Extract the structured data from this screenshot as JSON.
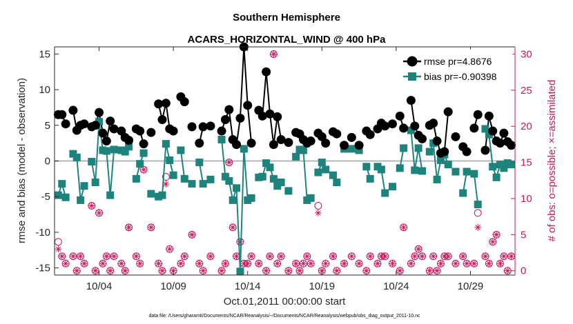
{
  "chart_data": {
    "type": "line",
    "title": "Southern Hemisphere",
    "subtitle": "ACARS_HORIZONTAL_WIND @ 400 hPa",
    "xlabel": "Oct.01,2011 00:00:00 start",
    "ylabel": "rmse and bias (model - observation)",
    "ylabel_right": "# of obs: o=possible; ×=assimilated",
    "xlim": [
      1,
      32
    ],
    "ylim": [
      -16,
      16
    ],
    "ylim_right": [
      -0.6,
      31
    ],
    "x_ticks": [
      4,
      9,
      14,
      19,
      24,
      29
    ],
    "x_tick_labels": [
      "10/04",
      "10/09",
      "10/14",
      "10/19",
      "10/24",
      "10/29"
    ],
    "y_ticks": [
      -15,
      -10,
      -5,
      0,
      5,
      10,
      15
    ],
    "y_tick_labels": [
      "-15",
      "-10",
      "-5",
      "0",
      "5",
      "10",
      "15"
    ],
    "y_ticks_right": [
      0,
      5,
      10,
      15,
      20,
      25,
      30
    ],
    "y_tick_labels_right": [
      "0",
      "5",
      "10",
      "15",
      "20",
      "25",
      "30"
    ],
    "legend_position": "top-right",
    "footer": "data file: /Users/gharamti/Documents/NCAR/Reanalysis/~/Documents/NCAR/Reanalysis/webpub/obs_diag_output_2011-10.nc",
    "series": [
      {
        "name": "rmse pr=4.8676",
        "color": "#000000",
        "marker": "circle",
        "x": [
          1.25,
          1.5,
          1.75,
          2.25,
          2.5,
          2.75,
          3.0,
          3.5,
          3.75,
          4.0,
          4.25,
          4.5,
          4.75,
          5.0,
          5.5,
          5.75,
          6.0,
          6.5,
          6.75,
          7.0,
          7.5,
          8.0,
          8.25,
          8.5,
          8.75,
          9.0,
          9.5,
          9.75,
          10.25,
          10.75,
          11.0,
          11.5,
          12.25,
          12.5,
          12.75,
          13.0,
          13.25,
          13.5,
          13.75,
          14.0,
          14.25,
          14.75,
          15.0,
          15.25,
          15.5,
          15.75,
          16.0,
          16.25,
          16.75,
          17.25,
          17.5,
          17.75,
          18.0,
          18.25,
          18.75,
          19.0,
          19.25,
          19.75,
          20.0,
          20.5,
          21.0,
          21.5,
          22.0,
          22.25,
          22.75,
          23.0,
          23.25,
          23.75,
          24.25,
          24.5,
          25.0,
          25.25,
          25.5,
          25.75,
          26.25,
          26.5,
          26.75,
          27.0,
          27.25,
          27.5,
          28.0,
          28.5,
          28.75,
          29.25,
          29.5,
          30.0,
          30.25,
          30.5,
          30.75,
          31.0,
          31.25,
          31.5,
          31.75
        ],
        "y": [
          6.5,
          6.5,
          5.2,
          7.1,
          4.3,
          5.0,
          5.2,
          4.8,
          5.0,
          6.8,
          3.9,
          2.8,
          5.6,
          4.5,
          4.2,
          3.3,
          2.9,
          4.5,
          4.2,
          2.4,
          4.0,
          8.0,
          5.8,
          8.1,
          4.5,
          4.2,
          9.0,
          8.3,
          4.8,
          2.5,
          4.8,
          4.9,
          4.2,
          5.8,
          7.2,
          3.0,
          2.3,
          6.0,
          16.0,
          7.8,
          2.5,
          7.1,
          6.3,
          12.5,
          6.6,
          2.3,
          6.2,
          3.0,
          2.6,
          4.0,
          3.8,
          3.0,
          2.5,
          2.8,
          3.9,
          3.4,
          2.5,
          4.1,
          3.8,
          2.2,
          3.3,
          2.2,
          4.2,
          3.7,
          4.5,
          5.3,
          4.9,
          5.2,
          6.3,
          4.6,
          8.5,
          4.9,
          3.6,
          3.1,
          5.0,
          5.3,
          2.8,
          1.1,
          1.3,
          6.9,
          3.4,
          2.0,
          1.3,
          4.6,
          6.5,
          1.5,
          6.3,
          4.2,
          2.8,
          2.5,
          3.9,
          2.7,
          2.2
        ]
      },
      {
        "name": "bias pr=-0.90398",
        "color": "#1d837d",
        "marker": "square",
        "x": [
          1.25,
          1.5,
          1.75,
          2.25,
          2.5,
          2.75,
          3.0,
          3.5,
          3.75,
          4.0,
          4.25,
          4.5,
          4.75,
          5.0,
          5.5,
          5.75,
          6.0,
          6.5,
          6.75,
          7.0,
          7.5,
          8.0,
          8.25,
          8.5,
          8.75,
          9.0,
          9.5,
          9.75,
          10.25,
          10.75,
          11.0,
          11.5,
          12.25,
          12.5,
          12.75,
          13.0,
          13.25,
          13.5,
          13.75,
          14.0,
          14.25,
          14.75,
          15.0,
          15.25,
          15.5,
          15.75,
          16.0,
          16.25,
          16.75,
          17.25,
          17.5,
          17.75,
          18.0,
          18.25,
          18.75,
          19.0,
          19.25,
          19.75,
          20.0,
          20.5,
          21.0,
          21.5,
          22.0,
          22.25,
          22.75,
          23.0,
          23.25,
          23.75,
          24.25,
          24.5,
          25.0,
          25.25,
          25.5,
          25.75,
          26.25,
          26.5,
          26.75,
          27.0,
          27.25,
          27.5,
          28.0,
          28.5,
          28.75,
          29.25,
          29.5,
          30.0,
          30.25,
          30.5,
          30.75,
          31.0,
          31.25,
          31.5,
          31.75
        ],
        "y": [
          -4.8,
          -3.2,
          -5.1,
          1.0,
          0.5,
          -5.5,
          -3.5,
          -0.1,
          -3.0,
          5.5,
          1.5,
          1.4,
          -4.8,
          1.6,
          1.5,
          1.3,
          2.0,
          -2.5,
          -0.4,
          1.1,
          -4.6,
          -5.0,
          -4.8,
          2.4,
          0.1,
          -2.0,
          1.5,
          -2.5,
          -3.2,
          -0.2,
          -3.2,
          -2.6,
          3.0,
          -2.2,
          -2.8,
          -5.5,
          -3.8,
          -15.5,
          1.7,
          -5.5,
          -5.2,
          -2.3,
          -2.2,
          -0.3,
          -0.9,
          -2.5,
          -3.5,
          -3.0,
          -4.2,
          0.6,
          1.6,
          1.5,
          -5.5,
          -5.2,
          -1.6,
          -0.2,
          -1.2,
          -2.0,
          -3.0,
          1.7,
          1.7,
          1.5,
          -0.8,
          -2.5,
          -0.8,
          -1.2,
          -4.5,
          -3.6,
          -1.0,
          1.8,
          4.3,
          -1.3,
          1.8,
          -1.4,
          1.3,
          2.5,
          -2.6,
          0.1,
          0.9,
          -0.5,
          -1.5,
          -4.5,
          -1.5,
          -1.8,
          -6.1,
          4.5,
          3.7,
          -0.8,
          -2.3,
          -0.5,
          -1.0,
          -0.3,
          -0.5
        ]
      },
      {
        "name": "possible",
        "color": "#c8175b",
        "marker": "circle-open",
        "axis": "right",
        "x": [
          1.25,
          1.5,
          1.75,
          2.25,
          2.5,
          2.75,
          3.0,
          3.5,
          3.75,
          4.0,
          4.25,
          4.5,
          4.75,
          5.0,
          5.5,
          5.75,
          6.0,
          6.5,
          6.75,
          7.0,
          7.5,
          8.0,
          8.25,
          8.5,
          8.75,
          9.0,
          9.5,
          9.75,
          10.25,
          10.75,
          11.0,
          11.5,
          12.25,
          12.5,
          12.75,
          13.0,
          13.25,
          13.5,
          13.75,
          14.0,
          14.25,
          14.75,
          15.0,
          15.25,
          15.5,
          15.75,
          16.0,
          16.25,
          16.75,
          17.25,
          17.5,
          17.75,
          18.0,
          18.25,
          18.75,
          19.0,
          19.25,
          19.75,
          20.0,
          20.5,
          21.0,
          21.5,
          22.0,
          22.25,
          22.75,
          23.0,
          23.25,
          23.75,
          24.25,
          24.5,
          25.0,
          25.25,
          25.5,
          25.75,
          26.25,
          26.5,
          26.75,
          27.0,
          27.25,
          27.5,
          28.0,
          28.5,
          28.75,
          29.25,
          29.5,
          30.0,
          30.25,
          30.5,
          30.75,
          31.0,
          31.25,
          31.5,
          31.75
        ],
        "y": [
          4,
          2,
          1,
          2,
          0,
          2,
          1,
          9,
          0,
          8,
          1,
          2,
          0,
          2,
          1,
          0,
          6,
          2,
          1,
          14,
          6,
          1,
          0,
          13,
          3,
          0,
          1,
          2,
          5,
          1,
          0,
          2,
          0,
          1,
          15,
          6,
          2,
          4,
          1,
          1,
          2,
          1,
          13,
          0,
          2,
          30,
          1,
          2,
          0,
          1,
          0,
          1,
          2,
          1,
          9,
          0,
          1,
          2,
          0,
          1,
          2,
          1,
          0,
          2,
          1,
          2,
          2,
          1,
          0,
          6,
          1,
          2,
          3,
          2,
          0,
          2,
          0,
          1,
          2,
          2,
          1,
          2,
          1,
          1,
          8,
          2,
          1,
          4,
          5,
          1,
          2,
          0,
          2
        ]
      },
      {
        "name": "assimilated",
        "color": "#c8175b",
        "marker": "cross",
        "axis": "right",
        "x": [
          1.25,
          1.5,
          1.75,
          2.25,
          2.5,
          2.75,
          3.0,
          3.5,
          3.75,
          4.0,
          4.25,
          4.5,
          4.75,
          5.0,
          5.5,
          5.75,
          6.0,
          6.5,
          6.75,
          7.0,
          7.5,
          8.0,
          8.25,
          8.5,
          8.75,
          9.0,
          9.5,
          9.75,
          10.25,
          10.75,
          11.0,
          11.5,
          12.25,
          12.5,
          12.75,
          13.0,
          13.25,
          13.5,
          13.75,
          14.0,
          14.25,
          14.75,
          15.0,
          15.25,
          15.5,
          15.75,
          16.0,
          16.25,
          16.75,
          17.25,
          17.5,
          17.75,
          18.0,
          18.25,
          18.75,
          19.0,
          19.25,
          19.75,
          20.0,
          20.5,
          21.0,
          21.5,
          22.0,
          22.25,
          22.75,
          23.0,
          23.25,
          23.75,
          24.25,
          24.5,
          25.0,
          25.25,
          25.5,
          25.75,
          26.25,
          26.5,
          26.75,
          27.0,
          27.25,
          27.5,
          28.0,
          28.5,
          28.75,
          29.25,
          29.5,
          30.0,
          30.25,
          30.5,
          30.75,
          31.0,
          31.25,
          31.5,
          31.75
        ],
        "y": [
          3,
          2,
          1,
          2,
          0,
          2,
          1,
          9,
          0,
          8,
          1,
          2,
          0,
          2,
          1,
          0,
          6,
          2,
          1,
          14,
          6,
          1,
          0,
          12,
          3,
          0,
          1,
          2,
          5,
          1,
          0,
          2,
          0,
          1,
          15,
          6,
          2,
          4,
          1,
          1,
          2,
          1,
          13,
          0,
          2,
          30,
          1,
          2,
          0,
          1,
          0,
          1,
          2,
          1,
          8,
          0,
          1,
          2,
          0,
          1,
          2,
          1,
          0,
          2,
          1,
          2,
          2,
          1,
          0,
          6,
          1,
          2,
          3,
          2,
          0,
          2,
          0,
          1,
          2,
          2,
          1,
          2,
          1,
          1,
          6,
          2,
          1,
          4,
          5,
          1,
          2,
          0,
          2
        ]
      }
    ]
  }
}
